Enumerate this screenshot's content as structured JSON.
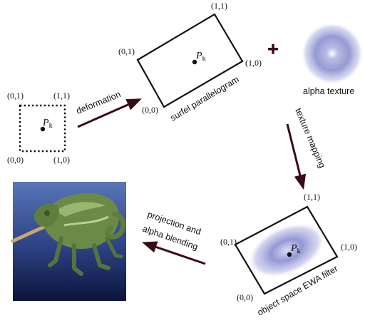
{
  "coords": {
    "c00": "(0,0)",
    "c10": "(1,0)",
    "c01": "(0,1)",
    "c11": "(1,1)"
  },
  "point": {
    "base": "P",
    "sub": "k"
  },
  "labels": {
    "deformation": "deformation",
    "surfel_parallelogram": "surfel parallelogram",
    "alpha_texture": "alpha texture",
    "texture_mapping": "texture mapping",
    "object_space_filter": "object space EWA filter",
    "projection_line1": "projection and",
    "projection_line2": "alpha blending",
    "plus": "+"
  },
  "colors": {
    "arrow": "#3a0a14",
    "ink": "#111111",
    "gaussian": "#6a6fb8",
    "render_bg_top": "#4f6fb0",
    "render_bg_bottom": "#0e1a44"
  },
  "icons": {
    "rendered_image": "chameleon-render-image"
  }
}
